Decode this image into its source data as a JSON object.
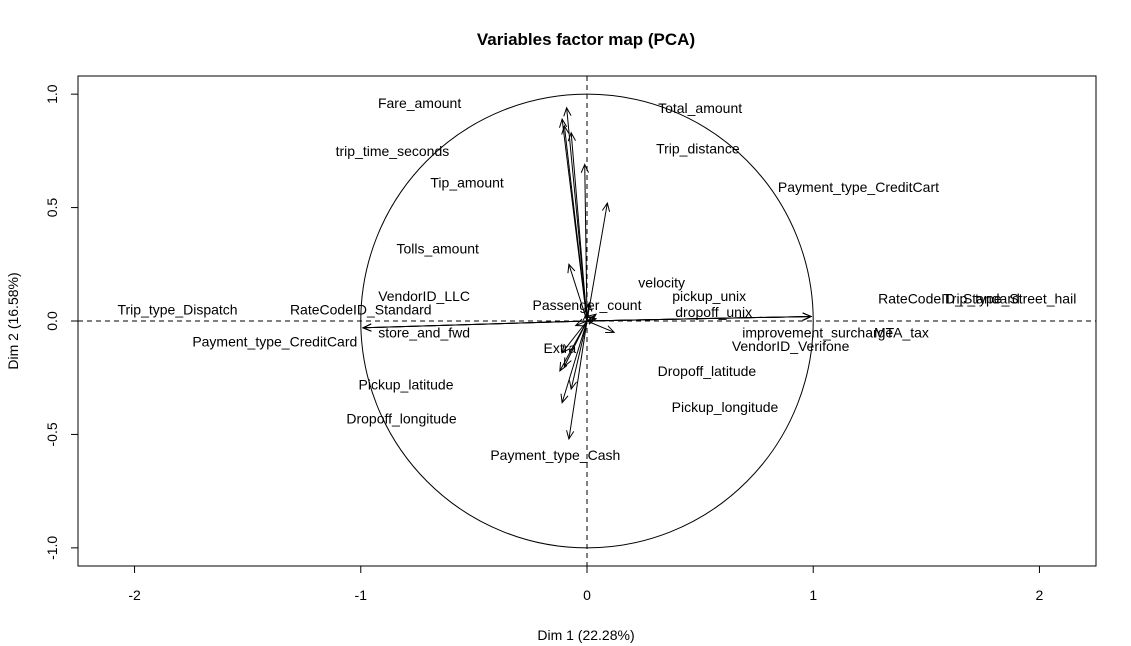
{
  "chart_data": {
    "type": "scatter",
    "title": "Variables factor map (PCA)",
    "xlabel": "Dim 1 (22.28%)",
    "ylabel": "Dim 2 (16.58%)",
    "xlim": [
      -2.25,
      2.25
    ],
    "ylim": [
      -1.08,
      1.08
    ],
    "xticks": [
      -2,
      -1,
      0,
      1,
      2
    ],
    "yticks": [
      -1.0,
      -0.5,
      0.0,
      0.5,
      1.0
    ],
    "xtick_labels": [
      "-2",
      "-1",
      "0",
      "1",
      "2"
    ],
    "ytick_labels": [
      "-1.0",
      "-0.5",
      "0.0",
      "0.5",
      "1.0"
    ],
    "grid": false,
    "unit_circle": true,
    "reference_lines": {
      "x": 0,
      "y": 0,
      "style": "dashed"
    },
    "variables": [
      {
        "label": "Fare_amount",
        "arrow": [
          -0.09,
          0.94
        ],
        "label_pos": [
          -0.74,
          0.96
        ]
      },
      {
        "label": "Total_amount",
        "arrow": [
          -0.11,
          0.89
        ],
        "label_pos": [
          0.5,
          0.94
        ]
      },
      {
        "label": "trip_time_seconds",
        "arrow": [
          -0.1,
          0.86
        ],
        "label_pos": [
          -0.86,
          0.75
        ]
      },
      {
        "label": "Trip_distance",
        "arrow": [
          -0.07,
          0.83
        ],
        "label_pos": [
          0.49,
          0.76
        ]
      },
      {
        "label": "Tip_amount",
        "arrow": [
          -0.01,
          0.69
        ],
        "label_pos": [
          -0.53,
          0.61
        ]
      },
      {
        "label": "Payment_type_CreditCart",
        "arrow": [
          0.09,
          0.52
        ],
        "label_pos": [
          1.2,
          0.59
        ]
      },
      {
        "label": "Tolls_amount",
        "arrow": [
          -0.08,
          0.25
        ],
        "label_pos": [
          -0.66,
          0.32
        ]
      },
      {
        "label": "velocity",
        "arrow": [
          0.01,
          0.08
        ],
        "label_pos": [
          0.33,
          0.17
        ]
      },
      {
        "label": "VendorID_LLC",
        "arrow": [
          0.0,
          0.04
        ],
        "label_pos": [
          -0.72,
          0.11
        ]
      },
      {
        "label": "pickup_unix",
        "arrow": [
          0.04,
          0.03
        ],
        "label_pos": [
          0.54,
          0.11
        ]
      },
      {
        "label": "Passenger_count",
        "arrow": [
          0.03,
          0.02
        ],
        "label_pos": [
          0.0,
          0.07
        ]
      },
      {
        "label": "dropoff_unix",
        "arrow": [
          0.04,
          0.01
        ],
        "label_pos": [
          0.56,
          0.04
        ]
      },
      {
        "label": "RateCodeID_Standard",
        "arrow": [
          -0.99,
          -0.03
        ],
        "label_pos": [
          -1.0,
          0.05
        ]
      },
      {
        "label": "Trip_type_Dispatch",
        "arrow": [
          -0.99,
          -0.03
        ],
        "label_pos": [
          -1.81,
          0.05
        ]
      },
      {
        "label": "Payment_type_CreditCard",
        "arrow": [
          -0.99,
          -0.03
        ],
        "label_pos": [
          -1.38,
          -0.09
        ]
      },
      {
        "label": "store_and_fwd",
        "arrow": [
          -0.05,
          -0.02
        ],
        "label_pos": [
          -0.72,
          -0.05
        ]
      },
      {
        "label": "improvement_surcharge",
        "arrow": [
          0.99,
          0.02
        ],
        "label_pos": [
          1.02,
          -0.05
        ]
      },
      {
        "label": "MTA_tax",
        "arrow": [
          0.99,
          0.02
        ],
        "label_pos": [
          1.39,
          -0.05
        ]
      },
      {
        "label": "RateCodeID_Standard",
        "arrow": [
          0.99,
          0.02
        ],
        "label_pos": [
          1.6,
          0.1
        ]
      },
      {
        "label": "Trip_type_Street_hail",
        "arrow": [
          0.99,
          0.02
        ],
        "label_pos": [
          1.87,
          0.1
        ]
      },
      {
        "label": "VendorID_Verifone",
        "arrow": [
          0.12,
          -0.05
        ],
        "label_pos": [
          0.9,
          -0.11
        ]
      },
      {
        "label": "Extra",
        "arrow": [
          -0.11,
          -0.14
        ],
        "label_pos": [
          -0.12,
          -0.12
        ]
      },
      {
        "label": "Dropoff_latitude",
        "arrow": [
          -0.1,
          -0.2
        ],
        "label_pos": [
          0.53,
          -0.22
        ]
      },
      {
        "label": "Pickup_latitude",
        "arrow": [
          -0.12,
          -0.22
        ],
        "label_pos": [
          -0.8,
          -0.28
        ]
      },
      {
        "label": "Dropoff_longitude",
        "arrow": [
          -0.11,
          -0.36
        ],
        "label_pos": [
          -0.82,
          -0.43
        ]
      },
      {
        "label": "Pickup_longitude",
        "arrow": [
          -0.07,
          -0.3
        ],
        "label_pos": [
          0.61,
          -0.38
        ]
      },
      {
        "label": "Payment_type_Cash",
        "arrow": [
          -0.08,
          -0.52
        ],
        "label_pos": [
          -0.14,
          -0.59
        ]
      }
    ]
  }
}
